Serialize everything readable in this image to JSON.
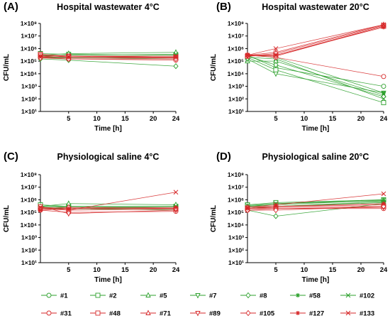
{
  "colors": {
    "green": "#2ca02c",
    "red": "#d62728",
    "dark": "#333333"
  },
  "chart_data": [
    {
      "type": "line",
      "panel_label": "(A)",
      "title": "Hospital wastewater 4°C",
      "xlabel": "Time [h]",
      "ylabel": "CFU/mL",
      "x_ticks": [
        "5",
        "10",
        "15",
        "20",
        "24"
      ],
      "y_ticks": [
        "1×10¹",
        "1×10²",
        "1×10³",
        "1×10⁴",
        "1×10⁵",
        "1×10⁶",
        "1×10⁷",
        "1×10⁸"
      ],
      "y_scale": "log",
      "xlim": [
        0,
        24
      ],
      "ylim": [
        10,
        100000000
      ],
      "x": [
        0,
        5,
        24
      ],
      "series": [
        {
          "name": "#1",
          "values": [
            300000,
            250000,
            250000
          ]
        },
        {
          "name": "#2",
          "values": [
            400000,
            350000,
            300000
          ]
        },
        {
          "name": "#5",
          "values": [
            300000,
            400000,
            500000
          ]
        },
        {
          "name": "#7",
          "values": [
            200000,
            200000,
            150000
          ]
        },
        {
          "name": "#8",
          "values": [
            150000,
            120000,
            40000
          ]
        },
        {
          "name": "#58",
          "values": [
            200000,
            180000,
            200000
          ]
        },
        {
          "name": "#102",
          "values": [
            250000,
            300000,
            350000
          ]
        },
        {
          "name": "#31",
          "values": [
            200000,
            150000,
            120000
          ]
        },
        {
          "name": "#48",
          "values": [
            350000,
            250000,
            200000
          ]
        },
        {
          "name": "#71",
          "values": [
            250000,
            200000,
            180000
          ]
        },
        {
          "name": "#89",
          "values": [
            300000,
            250000,
            200000
          ]
        },
        {
          "name": "#105",
          "values": [
            180000,
            150000,
            150000
          ]
        },
        {
          "name": "#127",
          "values": [
            250000,
            200000,
            200000
          ]
        },
        {
          "name": "#133",
          "values": [
            200000,
            250000,
            250000
          ]
        }
      ]
    },
    {
      "type": "line",
      "panel_label": "(B)",
      "title": "Hospital wastewater 20°C",
      "xlabel": "Time [h]",
      "ylabel": "CFU/mL",
      "x_ticks": [
        "5",
        "10",
        "15",
        "20",
        "24"
      ],
      "y_ticks": [
        "1×10¹",
        "1×10²",
        "1×10³",
        "1×10⁴",
        "1×10⁵",
        "1×10⁶",
        "1×10⁷",
        "1×10⁸"
      ],
      "y_scale": "log",
      "xlim": [
        0,
        24
      ],
      "ylim": [
        10,
        100000000
      ],
      "x": [
        0,
        5,
        24
      ],
      "series": [
        {
          "name": "#1",
          "values": [
            300000,
            30000,
            1000
          ]
        },
        {
          "name": "#2",
          "values": [
            200000,
            20000,
            50
          ]
        },
        {
          "name": "#5",
          "values": [
            100000,
            100000,
            200
          ]
        },
        {
          "name": "#7",
          "values": [
            150000,
            10000,
            300
          ]
        },
        {
          "name": "#8",
          "values": [
            250000,
            50000,
            150
          ]
        },
        {
          "name": "#58",
          "values": [
            300000,
            200000,
            300
          ]
        },
        {
          "name": "#102",
          "values": [
            200000,
            150000,
            100
          ]
        },
        {
          "name": "#31",
          "values": [
            300000,
            200000,
            6000
          ]
        },
        {
          "name": "#48",
          "values": [
            250000,
            300000,
            60000000
          ]
        },
        {
          "name": "#71",
          "values": [
            300000,
            500000,
            80000000
          ]
        },
        {
          "name": "#89",
          "values": [
            250000,
            400000,
            70000000
          ]
        },
        {
          "name": "#105",
          "values": [
            300000,
            250000,
            60000000
          ]
        },
        {
          "name": "#127",
          "values": [
            300000,
            300000,
            50000000
          ]
        },
        {
          "name": "#133",
          "values": [
            300000,
            1000000,
            80000000
          ]
        }
      ]
    },
    {
      "type": "line",
      "panel_label": "(C)",
      "title": "Physiological saline 4°C",
      "xlabel": "Time [h]",
      "ylabel": "CFU/mL",
      "x_ticks": [
        "5",
        "10",
        "15",
        "20",
        "24"
      ],
      "y_ticks": [
        "1×10¹",
        "1×10²",
        "1×10³",
        "1×10⁴",
        "1×10⁵",
        "1×10⁶",
        "1×10⁷",
        "1×10⁸"
      ],
      "y_scale": "log",
      "xlim": [
        0,
        24
      ],
      "ylim": [
        10,
        100000000
      ],
      "x": [
        0,
        5,
        24
      ],
      "series": [
        {
          "name": "#1",
          "values": [
            300000,
            250000,
            250000
          ]
        },
        {
          "name": "#2",
          "values": [
            400000,
            300000,
            300000
          ]
        },
        {
          "name": "#5",
          "values": [
            300000,
            500000,
            400000
          ]
        },
        {
          "name": "#7",
          "values": [
            200000,
            200000,
            200000
          ]
        },
        {
          "name": "#8",
          "values": [
            250000,
            200000,
            150000
          ]
        },
        {
          "name": "#58",
          "values": [
            200000,
            250000,
            250000
          ]
        },
        {
          "name": "#102",
          "values": [
            300000,
            300000,
            300000
          ]
        },
        {
          "name": "#31",
          "values": [
            150000,
            100000,
            120000
          ]
        },
        {
          "name": "#48",
          "values": [
            200000,
            150000,
            180000
          ]
        },
        {
          "name": "#71",
          "values": [
            250000,
            200000,
            200000
          ]
        },
        {
          "name": "#89",
          "values": [
            300000,
            80000,
            150000
          ]
        },
        {
          "name": "#105",
          "values": [
            200000,
            250000,
            200000
          ]
        },
        {
          "name": "#127",
          "values": [
            150000,
            200000,
            250000
          ]
        },
        {
          "name": "#133",
          "values": [
            250000,
            150000,
            4000000
          ]
        }
      ]
    },
    {
      "type": "line",
      "panel_label": "(D)",
      "title": "Physiological saline 20°C",
      "xlabel": "Time [h]",
      "ylabel": "CFU/mL",
      "x_ticks": [
        "5",
        "10",
        "15",
        "20",
        "24"
      ],
      "y_ticks": [
        "1×10¹",
        "1×10²",
        "1×10³",
        "1×10⁴",
        "1×10⁵",
        "1×10⁶",
        "1×10⁷",
        "1×10⁸"
      ],
      "y_scale": "log",
      "xlim": [
        0,
        24
      ],
      "ylim": [
        10,
        100000000
      ],
      "x": [
        0,
        5,
        24
      ],
      "series": [
        {
          "name": "#1",
          "values": [
            300000,
            500000,
            800000
          ]
        },
        {
          "name": "#2",
          "values": [
            400000,
            600000,
            1000000
          ]
        },
        {
          "name": "#5",
          "values": [
            300000,
            400000,
            900000
          ]
        },
        {
          "name": "#7",
          "values": [
            200000,
            300000,
            600000
          ]
        },
        {
          "name": "#8",
          "values": [
            150000,
            50000,
            500000
          ]
        },
        {
          "name": "#58",
          "values": [
            250000,
            300000,
            700000
          ]
        },
        {
          "name": "#102",
          "values": [
            350000,
            500000,
            1000000
          ]
        },
        {
          "name": "#31",
          "values": [
            150000,
            200000,
            200000
          ]
        },
        {
          "name": "#48",
          "values": [
            200000,
            250000,
            300000
          ]
        },
        {
          "name": "#71",
          "values": [
            250000,
            300000,
            400000
          ]
        },
        {
          "name": "#89",
          "values": [
            200000,
            200000,
            250000
          ]
        },
        {
          "name": "#105",
          "values": [
            150000,
            150000,
            300000
          ]
        },
        {
          "name": "#127",
          "values": [
            200000,
            300000,
            500000
          ]
        },
        {
          "name": "#133",
          "values": [
            250000,
            400000,
            3000000
          ]
        }
      ]
    }
  ],
  "legend": [
    {
      "name": "#1",
      "color": "green",
      "marker": "circle"
    },
    {
      "name": "#2",
      "color": "green",
      "marker": "square"
    },
    {
      "name": "#5",
      "color": "green",
      "marker": "triangle-up"
    },
    {
      "name": "#7",
      "color": "green",
      "marker": "triangle-down"
    },
    {
      "name": "#8",
      "color": "green",
      "marker": "diamond"
    },
    {
      "name": "#58",
      "color": "green",
      "marker": "star"
    },
    {
      "name": "#102",
      "color": "green",
      "marker": "x"
    },
    {
      "name": "#31",
      "color": "red",
      "marker": "circle"
    },
    {
      "name": "#48",
      "color": "red",
      "marker": "square"
    },
    {
      "name": "#71",
      "color": "red",
      "marker": "triangle-up"
    },
    {
      "name": "#89",
      "color": "red",
      "marker": "triangle-down"
    },
    {
      "name": "#105",
      "color": "red",
      "marker": "diamond"
    },
    {
      "name": "#127",
      "color": "red",
      "marker": "star"
    },
    {
      "name": "#133",
      "color": "red",
      "marker": "x"
    }
  ]
}
